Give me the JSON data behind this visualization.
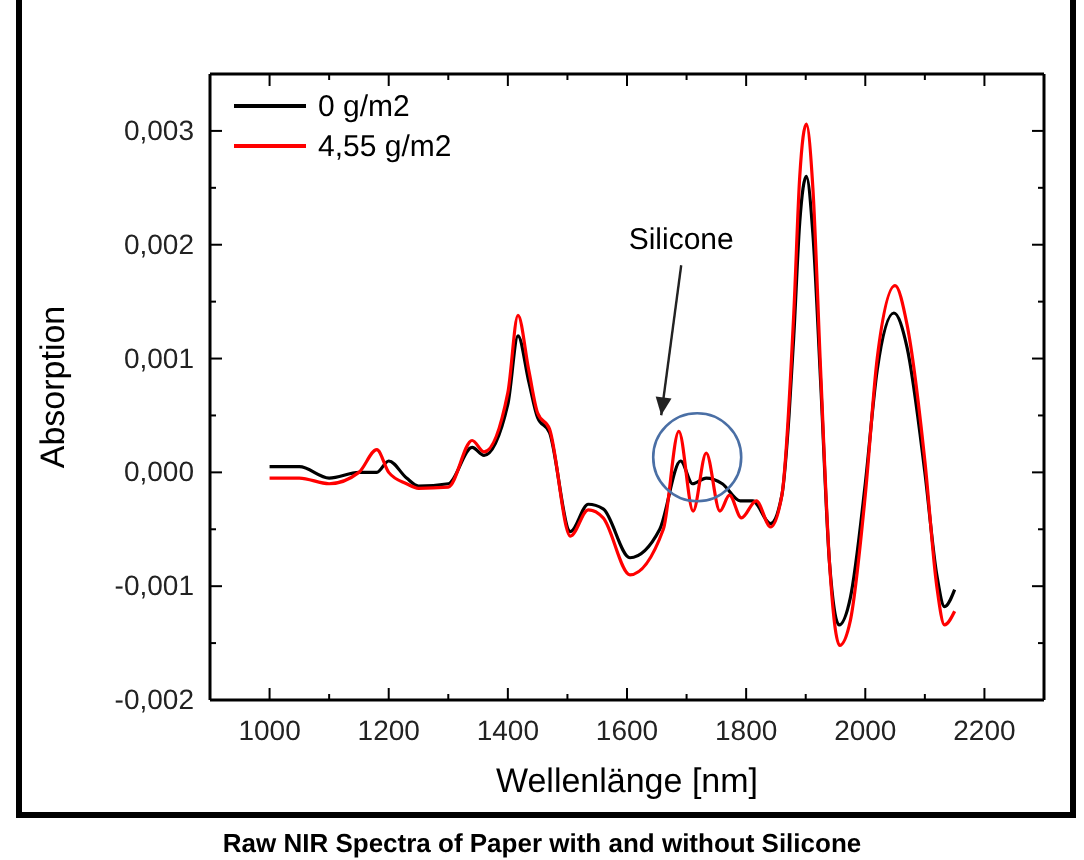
{
  "chart_data": {
    "type": "line",
    "title": "Raw NIR Spectra of Paper with and without Silicone",
    "xlabel": "Wellenlänge [nm]",
    "ylabel": "Absorption",
    "xlim": [
      900,
      2300
    ],
    "ylim": [
      -0.002,
      0.0035
    ],
    "xticks": [
      {
        "value": 900,
        "label": null
      },
      1000,
      {
        "value": 1100,
        "label": null
      },
      1200,
      {
        "value": 1300,
        "label": null
      },
      1400,
      {
        "value": 1500,
        "label": null
      },
      1600,
      {
        "value": 1700,
        "label": null
      },
      1800,
      {
        "value": 1900,
        "label": null
      },
      2000,
      {
        "value": 2100,
        "label": null
      },
      2200
    ],
    "yticks": [
      {
        "value": -0.002,
        "label": "-0,002"
      },
      {
        "value": -0.0015,
        "label": null
      },
      {
        "value": -0.001,
        "label": "-0,001"
      },
      {
        "value": -0.0005,
        "label": null
      },
      {
        "value": 0,
        "label": "0,000"
      },
      {
        "value": 0.0005,
        "label": null
      },
      {
        "value": 0.001,
        "label": "0,001"
      },
      {
        "value": 0.0015,
        "label": null
      },
      {
        "value": 0.002,
        "label": "0,002"
      },
      {
        "value": 0.0025,
        "label": null
      },
      {
        "value": 0.003,
        "label": "0,003"
      }
    ],
    "legend": "top left",
    "grid": false,
    "marker": "none",
    "line_style": "solid",
    "annotations": [
      "Silicone"
    ],
    "series": [
      {
        "name": "0 g/m2",
        "color": "#000000",
        "x": [
          1000,
          1050,
          1100,
          1150,
          1180,
          1200,
          1230,
          1250,
          1300,
          1340,
          1360,
          1400,
          1417,
          1435,
          1450,
          1470,
          1505,
          1535,
          1560,
          1605,
          1655,
          1690,
          1710,
          1733,
          1760,
          1790,
          1811,
          1841,
          1860,
          1872,
          1880,
          1890,
          1901,
          1912,
          1925,
          1940,
          1956,
          1975,
          2000,
          2020,
          2048,
          2070,
          2100,
          2120,
          2133,
          2150
        ],
        "values": [
          5e-05,
          5e-05,
          -5e-05,
          0.0,
          0.0,
          0.0001,
          -5e-05,
          -0.00012,
          -0.0001,
          0.00022,
          0.00015,
          0.0006,
          0.0012,
          0.0008,
          0.00048,
          0.00035,
          -0.00052,
          -0.00028,
          -0.00032,
          -0.00075,
          -0.0005,
          0.0001,
          -0.0001,
          -5e-05,
          -0.0001,
          -0.00025,
          -0.00025,
          -0.00045,
          -0.0002,
          0.0005,
          0.0012,
          0.0022,
          0.0026,
          0.0021,
          0.0008,
          -0.0008,
          -0.00134,
          -0.0011,
          -0.0001,
          0.0009,
          0.0014,
          0.0011,
          0.0,
          -0.0009,
          -0.00118,
          -0.00103
        ]
      },
      {
        "name": "4,55 g/m2",
        "color": "#ff0000",
        "x": [
          1000,
          1050,
          1100,
          1150,
          1180,
          1200,
          1230,
          1250,
          1300,
          1340,
          1360,
          1400,
          1417,
          1435,
          1450,
          1470,
          1505,
          1535,
          1560,
          1605,
          1661,
          1687,
          1711,
          1733,
          1756,
          1772,
          1792,
          1817,
          1841,
          1860,
          1880,
          1890,
          1901,
          1912,
          1925,
          1940,
          1957,
          1975,
          2000,
          2020,
          2050,
          2070,
          2100,
          2120,
          2133,
          2150
        ],
        "values": [
          -5e-05,
          -5e-05,
          -0.0001,
          0.0,
          0.0002,
          0.0,
          -0.0001,
          -0.00014,
          -0.00013,
          0.00028,
          0.00018,
          0.0007,
          0.00138,
          0.0009,
          0.00052,
          0.00038,
          -0.00056,
          -0.00033,
          -0.0004,
          -0.0009,
          -0.0005,
          0.00036,
          -0.00034,
          0.00017,
          -0.00034,
          -0.0002,
          -0.0004,
          -0.00025,
          -0.00048,
          -0.0002,
          0.0014,
          0.0026,
          0.00306,
          0.0025,
          0.0009,
          -0.0008,
          -0.00152,
          -0.0013,
          -0.0002,
          0.001,
          0.00164,
          0.0013,
          0.0001,
          -0.001,
          -0.00134,
          -0.00122
        ]
      }
    ]
  }
}
